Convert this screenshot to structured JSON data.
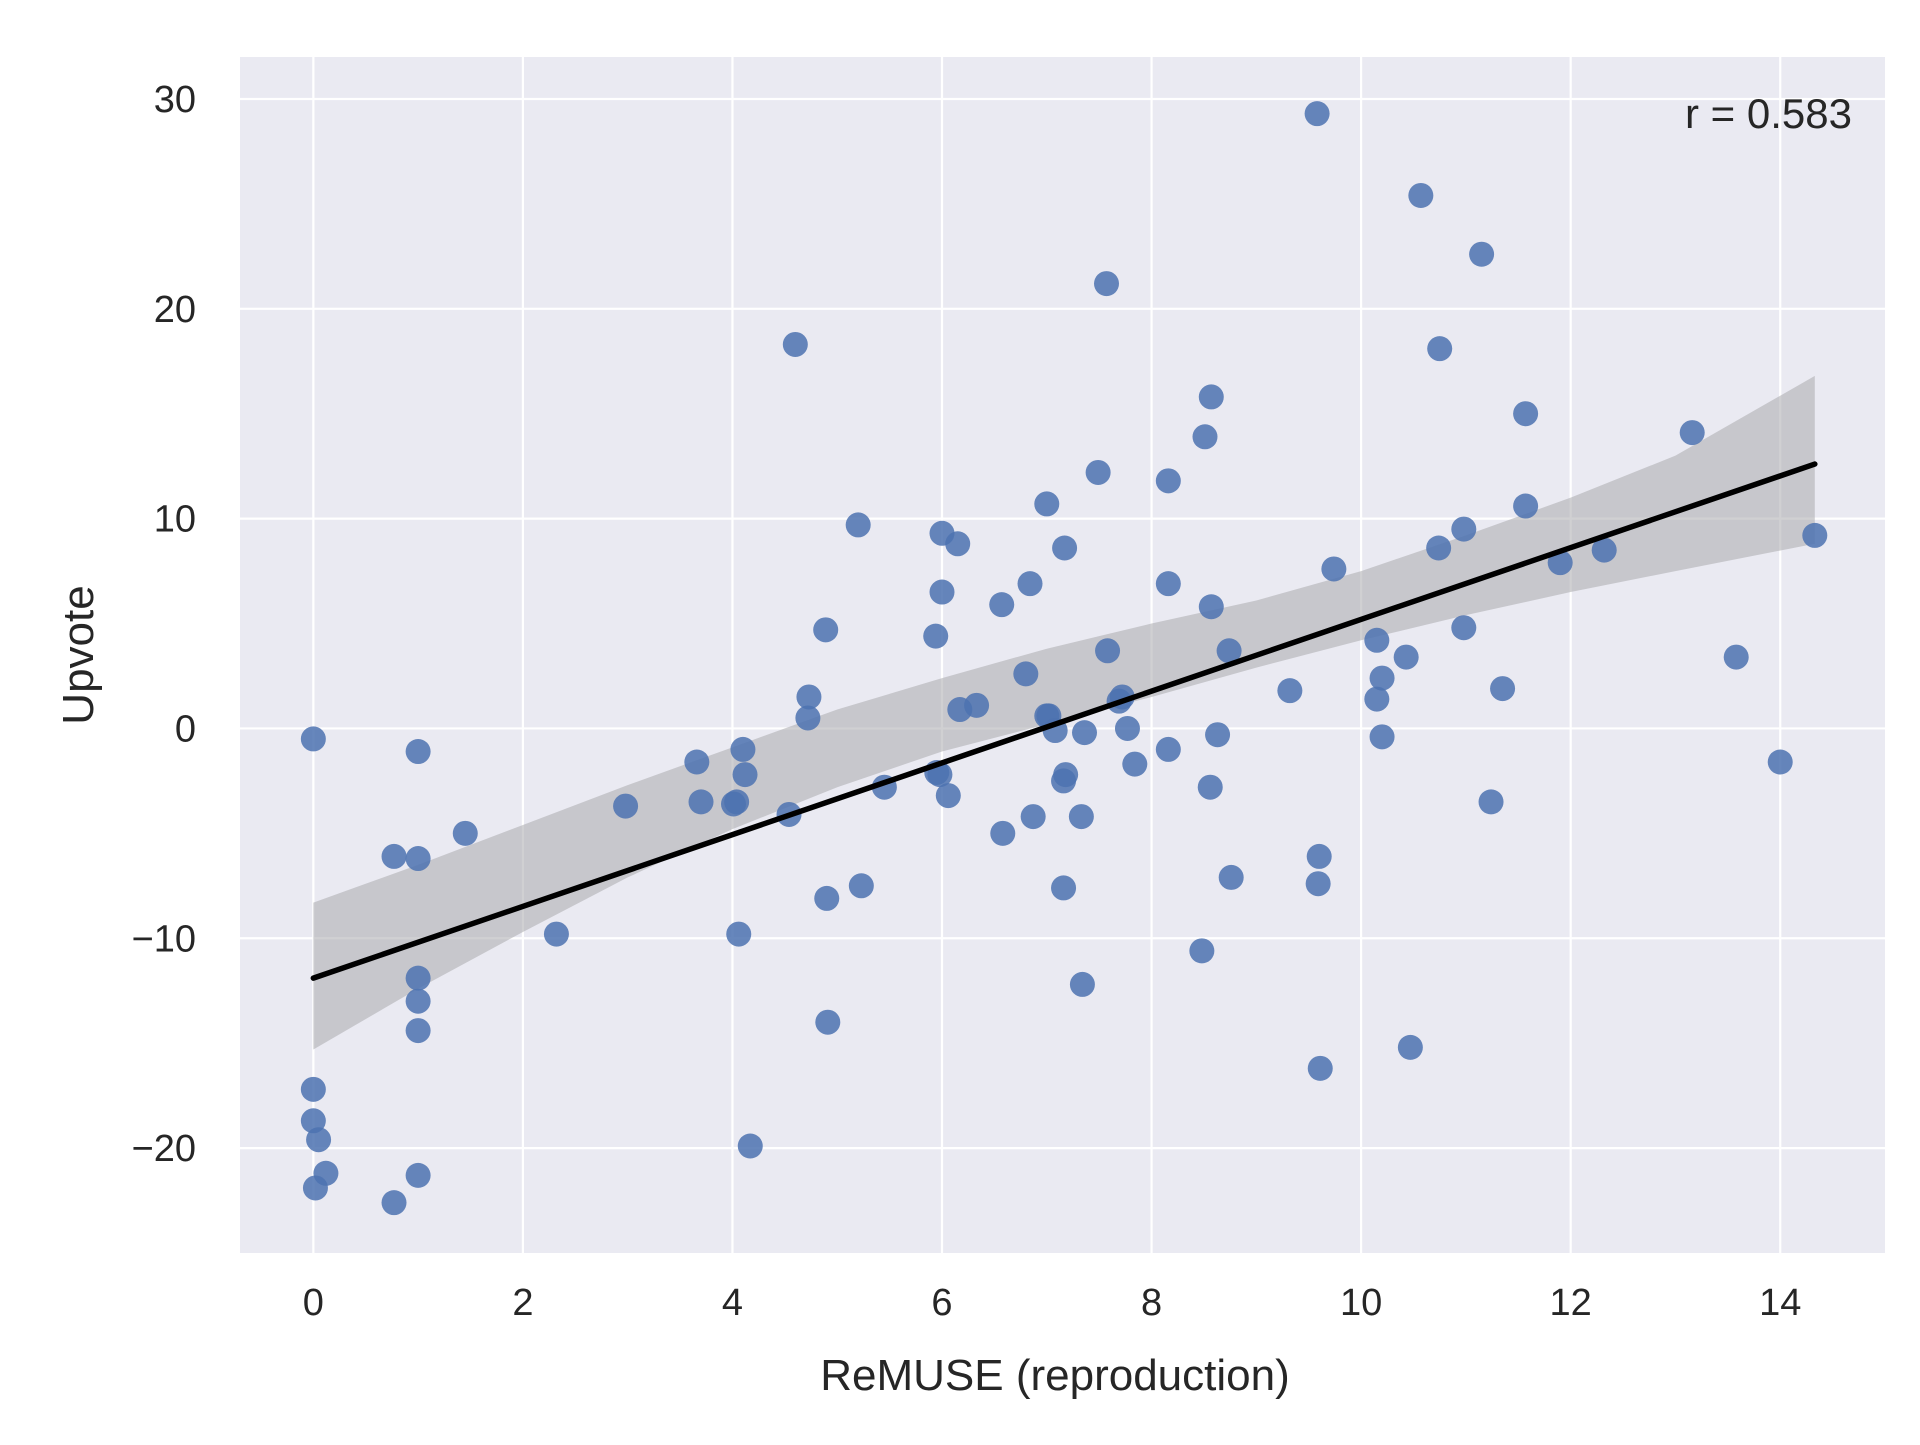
{
  "chart_data": {
    "type": "scatter",
    "xlabel": "ReMUSE (reproduction)",
    "ylabel": "Upvote",
    "xlim": [
      -0.7,
      15.0
    ],
    "ylim": [
      -25,
      32
    ],
    "xticks": [
      0,
      2,
      4,
      6,
      8,
      10,
      12,
      14
    ],
    "yticks": [
      -20,
      -10,
      0,
      10,
      20,
      30
    ],
    "xtick_labels": [
      "0",
      "2",
      "4",
      "6",
      "8",
      "10",
      "12",
      "14"
    ],
    "ytick_labels": [
      "−20",
      "−10",
      "0",
      "10",
      "20",
      "30"
    ],
    "grid": true,
    "annotation": "r = 0.583",
    "colors": {
      "background": "#eaeaf2",
      "grid": "#ffffff",
      "point": "#4c72b0",
      "regression_line": "#000000",
      "confidence_band": "#a9a9ad"
    },
    "regression": {
      "x": [
        0,
        14.33
      ],
      "y": [
        -11.9,
        12.6
      ],
      "ci_x": [
        0,
        1,
        2,
        3,
        4,
        5,
        6,
        7,
        8,
        9,
        10,
        11,
        12,
        13,
        14.33
      ],
      "ci_lower": [
        -15.3,
        -12.4,
        -9.7,
        -7.1,
        -4.8,
        -2.8,
        -1.1,
        0.2,
        1.5,
        2.9,
        4.2,
        5.4,
        6.5,
        7.5,
        8.8
      ],
      "ci_upper": [
        -8.3,
        -6.5,
        -4.6,
        -2.7,
        -0.9,
        0.9,
        2.4,
        3.8,
        5.0,
        6.1,
        7.5,
        9.2,
        11.0,
        13.0,
        16.8
      ]
    },
    "points": [
      [
        0.0,
        -0.5
      ],
      [
        0.0,
        -17.2
      ],
      [
        0.0,
        -18.7
      ],
      [
        0.05,
        -19.6
      ],
      [
        0.12,
        -21.2
      ],
      [
        0.02,
        -21.9
      ],
      [
        0.77,
        -6.1
      ],
      [
        0.77,
        -22.6
      ],
      [
        1.0,
        -1.1
      ],
      [
        1.0,
        -6.2
      ],
      [
        1.0,
        -11.9
      ],
      [
        1.0,
        -13.0
      ],
      [
        1.0,
        -14.4
      ],
      [
        1.0,
        -21.3
      ],
      [
        1.45,
        -5.0
      ],
      [
        2.32,
        -9.8
      ],
      [
        2.98,
        -3.7
      ],
      [
        3.66,
        -1.6
      ],
      [
        3.7,
        -3.5
      ],
      [
        4.01,
        -3.6
      ],
      [
        4.04,
        -3.5
      ],
      [
        4.06,
        -9.8
      ],
      [
        4.1,
        -1.0
      ],
      [
        4.12,
        -2.2
      ],
      [
        4.17,
        -19.9
      ],
      [
        4.54,
        -4.1
      ],
      [
        4.6,
        18.3
      ],
      [
        4.72,
        0.5
      ],
      [
        4.73,
        1.5
      ],
      [
        4.89,
        4.7
      ],
      [
        4.9,
        -8.1
      ],
      [
        4.91,
        -14.0
      ],
      [
        5.2,
        9.7
      ],
      [
        5.23,
        -7.5
      ],
      [
        5.45,
        -2.8
      ],
      [
        5.94,
        4.4
      ],
      [
        5.95,
        -2.1
      ],
      [
        5.98,
        -2.2
      ],
      [
        6.0,
        9.3
      ],
      [
        6.0,
        6.5
      ],
      [
        6.06,
        -3.2
      ],
      [
        6.15,
        8.8
      ],
      [
        6.17,
        0.9
      ],
      [
        6.33,
        1.1
      ],
      [
        6.57,
        5.9
      ],
      [
        6.58,
        -5.0
      ],
      [
        6.8,
        2.6
      ],
      [
        6.84,
        6.9
      ],
      [
        6.87,
        -4.2
      ],
      [
        7.0,
        10.7
      ],
      [
        7.0,
        0.6
      ],
      [
        7.02,
        0.6
      ],
      [
        7.08,
        -0.1
      ],
      [
        7.16,
        -7.6
      ],
      [
        7.16,
        -2.5
      ],
      [
        7.18,
        -2.2
      ],
      [
        7.17,
        8.6
      ],
      [
        7.33,
        -4.2
      ],
      [
        7.34,
        -12.2
      ],
      [
        7.36,
        -0.2
      ],
      [
        7.49,
        12.2
      ],
      [
        7.57,
        21.2
      ],
      [
        7.58,
        3.7
      ],
      [
        7.69,
        1.3
      ],
      [
        7.72,
        1.5
      ],
      [
        7.77,
        0.0
      ],
      [
        7.84,
        -1.7
      ],
      [
        8.16,
        -1.0
      ],
      [
        8.16,
        6.9
      ],
      [
        8.16,
        11.8
      ],
      [
        8.48,
        -10.6
      ],
      [
        8.51,
        13.9
      ],
      [
        8.56,
        -2.8
      ],
      [
        8.57,
        5.8
      ],
      [
        8.57,
        15.8
      ],
      [
        8.63,
        -0.3
      ],
      [
        8.74,
        3.7
      ],
      [
        8.76,
        -7.1
      ],
      [
        9.32,
        1.8
      ],
      [
        9.58,
        29.3
      ],
      [
        9.59,
        -7.4
      ],
      [
        9.6,
        -6.1
      ],
      [
        9.61,
        -16.2
      ],
      [
        9.74,
        7.6
      ],
      [
        10.15,
        4.2
      ],
      [
        10.15,
        1.4
      ],
      [
        10.2,
        2.4
      ],
      [
        10.2,
        -0.4
      ],
      [
        10.43,
        3.4
      ],
      [
        10.47,
        -15.2
      ],
      [
        10.57,
        25.4
      ],
      [
        10.74,
        8.6
      ],
      [
        10.75,
        18.1
      ],
      [
        10.98,
        9.5
      ],
      [
        10.98,
        4.8
      ],
      [
        11.15,
        22.6
      ],
      [
        11.24,
        -3.5
      ],
      [
        11.35,
        1.9
      ],
      [
        11.57,
        15.0
      ],
      [
        11.57,
        10.6
      ],
      [
        11.9,
        7.9
      ],
      [
        12.32,
        8.5
      ],
      [
        13.16,
        14.1
      ],
      [
        13.58,
        3.4
      ],
      [
        14.0,
        -1.6
      ],
      [
        14.33,
        9.2
      ]
    ]
  }
}
